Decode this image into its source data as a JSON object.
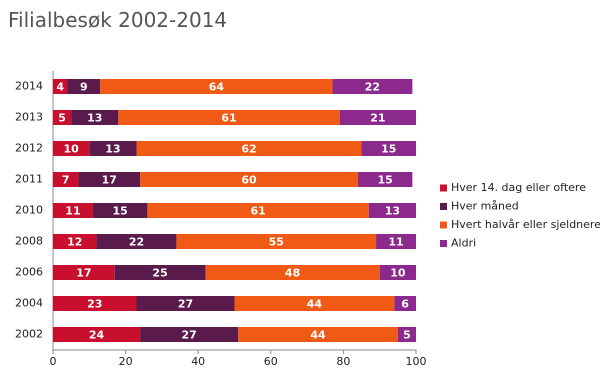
{
  "chart_data": {
    "type": "stacked-bar-horizontal",
    "title": "Filialbesøk 2002-2014",
    "categories": [
      "2014",
      "2013",
      "2012",
      "2011",
      "2010",
      "2008",
      "2006",
      "2004",
      "2002"
    ],
    "series": [
      {
        "name": "Hver 14. dag eller oftere",
        "color": "#c8102e",
        "values": [
          4,
          5,
          10,
          7,
          11,
          12,
          17,
          23,
          24
        ]
      },
      {
        "name": "Hver måned",
        "color": "#5b1a4c",
        "values": [
          9,
          13,
          13,
          17,
          15,
          22,
          25,
          27,
          27
        ]
      },
      {
        "name": "Hvert halvår eller sjeldnere",
        "color": "#f05a14",
        "values": [
          64,
          61,
          62,
          60,
          61,
          55,
          48,
          44,
          44
        ]
      },
      {
        "name": "Aldri",
        "color": "#8b2a8c",
        "values": [
          22,
          21,
          15,
          15,
          13,
          11,
          10,
          6,
          5
        ]
      }
    ],
    "xlim": [
      0,
      100
    ],
    "xticks": [
      0,
      20,
      40,
      60,
      80,
      100
    ],
    "grid": false,
    "legend": "right"
  }
}
